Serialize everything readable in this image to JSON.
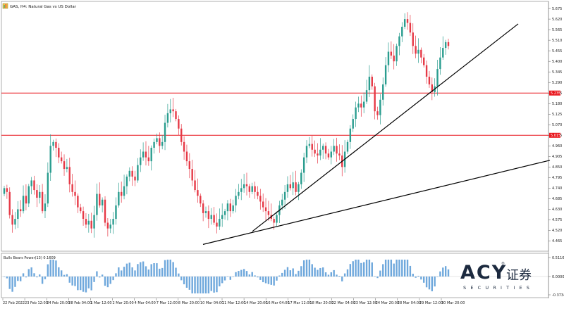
{
  "window": {
    "title": "GAS, H4: Natural Gas vs US Dollar",
    "icon": "chart-window-icon"
  },
  "chart_data": {
    "type": "candlestick",
    "symbol": "GAS",
    "timeframe": "H4",
    "instrument": "Natural Gas vs US Dollar",
    "price_axis_ticks": [
      "5.675",
      "5.620",
      "5.565",
      "5.510",
      "5.455",
      "5.400",
      "5.345",
      "5.290",
      "5.235",
      "5.180",
      "5.125",
      "5.070",
      "5.015",
      "4.960",
      "4.905",
      "4.850",
      "4.795",
      "4.740",
      "4.685",
      "4.630",
      "4.575",
      "4.520",
      "4.465"
    ],
    "price_range": [
      4.43,
      5.69
    ],
    "time_axis_labels": [
      "22 Feb 2022",
      "23 Feb 12:00",
      "24 Feb 20:00",
      "28 Feb 04:00",
      "1 Mar 12:00",
      "2 Mar 20:00",
      "4 Mar 04:00",
      "7 Mar 12:00",
      "8 Mar 20:00",
      "10 Mar 04:00",
      "11 Mar 12:00",
      "14 Mar 20:00",
      "16 Mar 04:00",
      "17 Mar 12:00",
      "18 Mar 20:00",
      "22 Mar 04:00",
      "23 Mar 12:00",
      "24 Mar 20:00",
      "28 Mar 04:00",
      "29 Mar 12:00",
      "30 Mar 20:00"
    ],
    "horizontal_levels": [
      {
        "price": 5.235,
        "label": "5.235",
        "color": "#e8151b"
      },
      {
        "price": 5.015,
        "label": "5.015",
        "color": "#e8151b"
      }
    ],
    "trendlines": [
      {
        "from": [
          358,
          4.515
        ],
        "to": [
          735,
          5.595
        ]
      },
      {
        "from": [
          288,
          4.447
        ],
        "to": [
          780,
          4.885
        ]
      }
    ],
    "candle_closes": [
      4.74,
      4.72,
      4.6,
      4.55,
      4.58,
      4.63,
      4.62,
      4.7,
      4.66,
      4.75,
      4.78,
      4.73,
      4.69,
      4.72,
      4.62,
      4.66,
      4.82,
      4.96,
      4.98,
      4.95,
      4.9,
      4.88,
      4.84,
      4.85,
      4.76,
      4.72,
      4.7,
      4.64,
      4.62,
      4.58,
      4.55,
      4.57,
      4.53,
      4.6,
      4.71,
      4.65,
      4.68,
      4.56,
      4.53,
      4.55,
      4.58,
      4.65,
      4.72,
      4.7,
      4.75,
      4.8,
      4.83,
      4.8,
      4.78,
      4.86,
      4.9,
      4.93,
      4.9,
      4.88,
      4.95,
      4.98,
      5.0,
      4.96,
      4.98,
      5.08,
      5.13,
      5.15,
      5.14,
      5.1,
      5.05,
      4.98,
      4.93,
      4.88,
      4.84,
      4.78,
      4.73,
      4.7,
      4.66,
      4.61,
      4.62,
      4.58,
      4.6,
      4.56,
      4.54,
      4.58,
      4.6,
      4.62,
      4.66,
      4.62,
      4.65,
      4.7,
      4.72,
      4.74,
      4.76,
      4.75,
      4.72,
      4.75,
      4.72,
      4.7,
      4.67,
      4.64,
      4.62,
      4.6,
      4.58,
      4.56,
      4.6,
      4.65,
      4.68,
      4.72,
      4.76,
      4.74,
      4.77,
      4.72,
      4.76,
      4.82,
      4.9,
      4.96,
      4.97,
      4.94,
      4.92,
      4.91,
      4.94,
      4.96,
      4.92,
      4.9,
      4.93,
      4.96,
      4.92,
      4.91,
      4.85,
      4.93,
      4.98,
      5.05,
      5.1,
      5.16,
      5.18,
      5.16,
      5.19,
      5.25,
      5.32,
      5.27,
      5.14,
      5.12,
      5.2,
      5.28,
      5.38,
      5.45,
      5.43,
      5.4,
      5.48,
      5.53,
      5.58,
      5.62,
      5.6,
      5.55,
      5.48,
      5.44,
      5.46,
      5.42,
      5.38,
      5.32,
      5.28,
      5.24,
      5.27,
      5.36,
      5.42,
      5.47,
      5.5,
      5.48
    ],
    "indicator": {
      "name": "Bulls Bears Power(13) 0.1609",
      "axis_ticks": [
        "0.5116",
        "0.0000",
        "-0.3734"
      ]
    }
  },
  "watermark": {
    "brand": "ACY",
    "chinese": "证券",
    "sub": "SECURITIES",
    "registered": "®"
  }
}
